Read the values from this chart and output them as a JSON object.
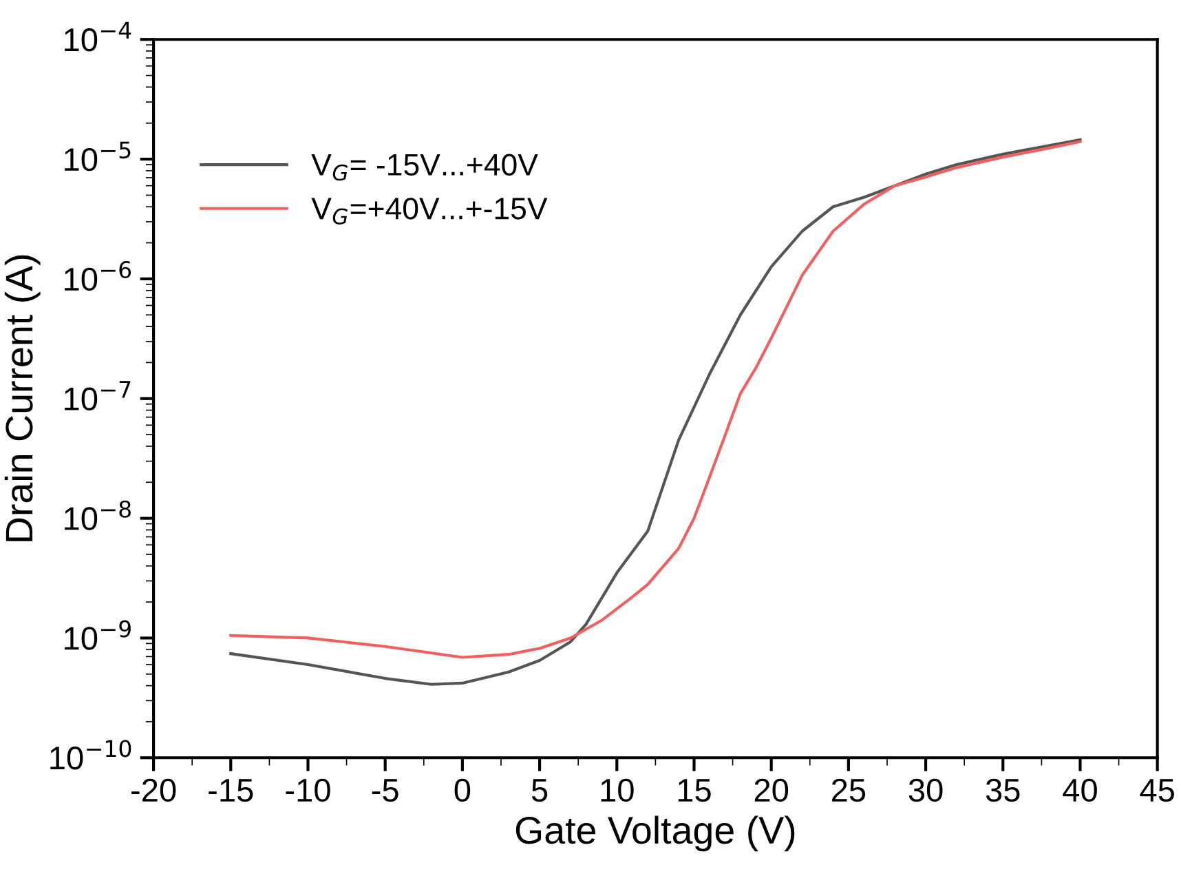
{
  "chart_data": {
    "type": "line",
    "xlabel": "Gate Voltage (V)",
    "ylabel": "Drain Current (A)",
    "log": "y",
    "grid": false,
    "legend": "top left",
    "line_style": "solid",
    "marker": "none",
    "xlim": [
      -20,
      45
    ],
    "xticks": [
      -20,
      -15,
      -10,
      -5,
      0,
      5,
      10,
      15,
      20,
      25,
      30,
      35,
      40,
      45
    ],
    "ylim": [
      1e-10,
      0.0001
    ],
    "yticks": [
      {
        "value": 1e-10,
        "label": "10$^{−10}$"
      },
      {
        "value": 1e-09,
        "label": "10$^{−9}$"
      },
      {
        "value": 1e-08,
        "label": "10$^{−8}$"
      },
      {
        "value": 1e-07,
        "label": "10$^{−7}$"
      },
      {
        "value": 1e-06,
        "label": "10$^{−6}$"
      },
      {
        "value": 1e-05,
        "label": "10$^{−5}$"
      },
      {
        "value": 0.0001,
        "label": "10$^{−4}$"
      }
    ],
    "series": [
      {
        "name": "V$_{G}$= -15V...+40V",
        "color": "#555555",
        "x": [
          -15,
          -10,
          -5,
          -2,
          0,
          3,
          5,
          7,
          8,
          10,
          12,
          14,
          16,
          18,
          20,
          22,
          24,
          26,
          28,
          30,
          32,
          35,
          38,
          40
        ],
        "values": [
          7.4e-10,
          6e-10,
          4.6e-10,
          4.1e-10,
          4.2e-10,
          5.2e-10,
          6.5e-10,
          9.3e-10,
          1.3e-09,
          3.5e-09,
          7.8e-09,
          4.5e-08,
          1.6e-07,
          5e-07,
          1.26e-06,
          2.5e-06,
          4e-06,
          4.8e-06,
          6e-06,
          7.5e-06,
          9e-06,
          1.1e-05,
          1.3e-05,
          1.45e-05
        ]
      },
      {
        "name": "V$_{G}$=+40V...+-15V",
        "color": "#f06060",
        "x": [
          -15,
          -10,
          -5,
          0,
          3,
          5,
          7,
          9,
          11,
          12,
          14,
          15,
          16,
          17,
          18,
          19,
          20,
          22,
          24,
          26,
          28,
          30,
          32,
          35,
          38,
          40
        ],
        "values": [
          1.05e-09,
          1e-09,
          8.5e-10,
          6.9e-10,
          7.3e-10,
          8.2e-10,
          1e-09,
          1.4e-09,
          2.2e-09,
          2.8e-09,
          5.6e-09,
          1e-08,
          2.2e-08,
          4.9e-08,
          1.1e-07,
          1.8e-07,
          3.2e-07,
          1.07e-06,
          2.5e-06,
          4.2e-06,
          6e-06,
          7.1e-06,
          8.5e-06,
          1.04e-05,
          1.24e-05,
          1.4e-05
        ]
      }
    ]
  }
}
